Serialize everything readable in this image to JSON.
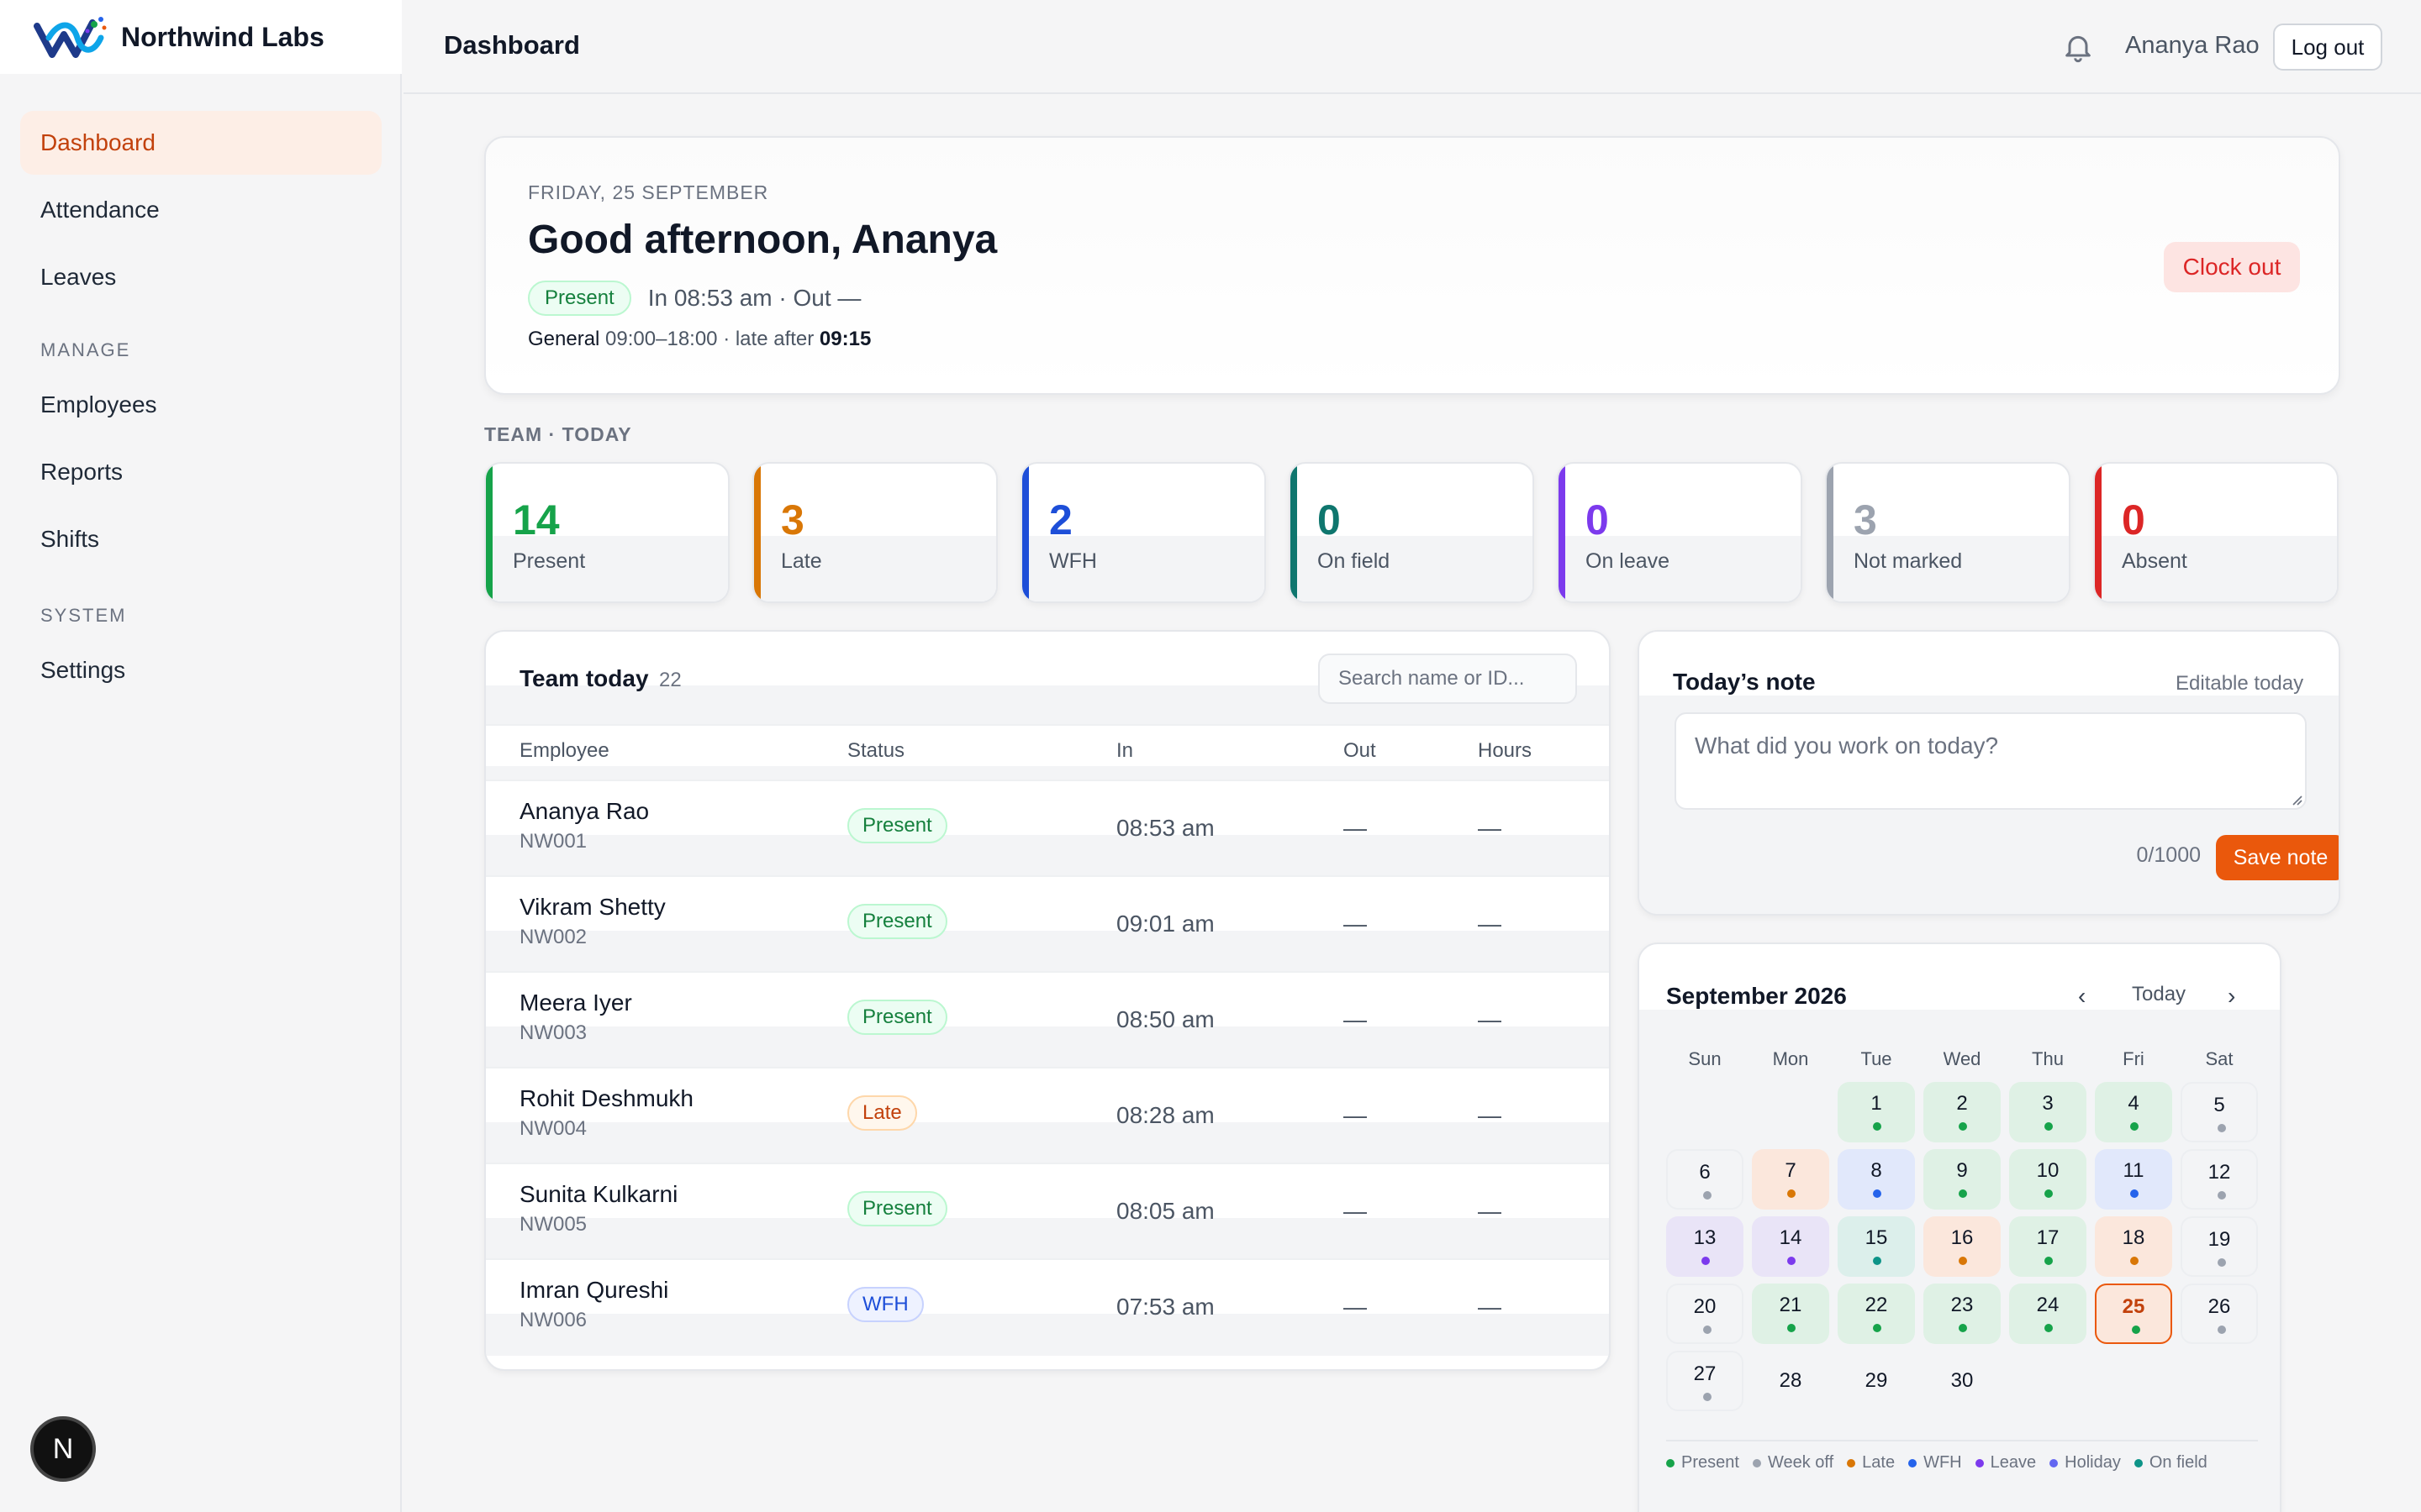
{
  "app": {
    "name": "Northwind Labs"
  },
  "sidebar": {
    "items": [
      {
        "label": "Dashboard",
        "active": true
      },
      {
        "label": "Attendance"
      },
      {
        "label": "Leaves"
      }
    ],
    "manage_label": "MANAGE",
    "manage_items": [
      {
        "label": "Employees"
      },
      {
        "label": "Reports"
      },
      {
        "label": "Shifts"
      }
    ],
    "system_label": "SYSTEM",
    "system_items": [
      {
        "label": "Settings"
      }
    ],
    "badge": "N"
  },
  "topbar": {
    "title": "Dashboard",
    "user": "Ananya Rao",
    "logout_label": "Log out",
    "icon": "bell-icon"
  },
  "greeting": {
    "date": "FRIDAY, 25 SEPTEMBER",
    "title": "Good afternoon, Ananya",
    "status": "Present",
    "in_out": "In 08:53 am · Out —",
    "shift_name": "General",
    "shift_hours": " 09:00–18:00 · late after ",
    "late_after": "09:15",
    "clock_out_label": "Clock out"
  },
  "team_today_label": "TEAM · TODAY",
  "stats": [
    {
      "value": "14",
      "label": "Present",
      "color": "#16a34a"
    },
    {
      "value": "3",
      "label": "Late",
      "color": "#d97706"
    },
    {
      "value": "2",
      "label": "WFH",
      "color": "#1d4ed8"
    },
    {
      "value": "0",
      "label": "On field",
      "color": "#0f766e"
    },
    {
      "value": "0",
      "label": "On leave",
      "color": "#7c3aed"
    },
    {
      "value": "3",
      "label": "Not marked",
      "color": "#9ca3af"
    },
    {
      "value": "0",
      "label": "Absent",
      "color": "#dc2626"
    }
  ],
  "team": {
    "title": "Team today",
    "count": "22",
    "search_placeholder": "Search name or ID...",
    "columns": [
      "Employee",
      "Status",
      "In",
      "Out",
      "Hours"
    ],
    "rows": [
      {
        "name": "Ananya Rao",
        "id": "NW001",
        "status": "Present",
        "in": "08:53 am",
        "out": "—",
        "hours": "—"
      },
      {
        "name": "Vikram Shetty",
        "id": "NW002",
        "status": "Present",
        "in": "09:01 am",
        "out": "—",
        "hours": "—"
      },
      {
        "name": "Meera Iyer",
        "id": "NW003",
        "status": "Present",
        "in": "08:50 am",
        "out": "—",
        "hours": "—"
      },
      {
        "name": "Rohit Deshmukh",
        "id": "NW004",
        "status": "Late",
        "in": "08:28 am",
        "out": "—",
        "hours": "—"
      },
      {
        "name": "Sunita Kulkarni",
        "id": "NW005",
        "status": "Present",
        "in": "08:05 am",
        "out": "—",
        "hours": "—"
      },
      {
        "name": "Imran Qureshi",
        "id": "NW006",
        "status": "WFH",
        "in": "07:53 am",
        "out": "—",
        "hours": "—"
      }
    ]
  },
  "note": {
    "title": "Today’s note",
    "hint": "Editable today",
    "placeholder": "What did you work on today?",
    "count": "0/1000",
    "save_label": "Save note"
  },
  "calendar": {
    "title": "September 2026",
    "prev": "‹",
    "today_label": "Today",
    "next": "›",
    "weekdays": [
      "Sun",
      "Mon",
      "Tue",
      "Wed",
      "Thu",
      "Fri",
      "Sat"
    ],
    "first_weekday_index": 2,
    "today": 25,
    "days": [
      {
        "d": "1",
        "s": "present"
      },
      {
        "d": "2",
        "s": "present"
      },
      {
        "d": "3",
        "s": "present"
      },
      {
        "d": "4",
        "s": "present"
      },
      {
        "d": "5",
        "s": "weekoff"
      },
      {
        "d": "6",
        "s": "weekoff"
      },
      {
        "d": "7",
        "s": "late"
      },
      {
        "d": "8",
        "s": "wfh"
      },
      {
        "d": "9",
        "s": "present"
      },
      {
        "d": "10",
        "s": "present"
      },
      {
        "d": "11",
        "s": "wfh"
      },
      {
        "d": "12",
        "s": "weekoff"
      },
      {
        "d": "13",
        "s": "leave"
      },
      {
        "d": "14",
        "s": "leave"
      },
      {
        "d": "15",
        "s": "field"
      },
      {
        "d": "16",
        "s": "late"
      },
      {
        "d": "17",
        "s": "present"
      },
      {
        "d": "18",
        "s": "late"
      },
      {
        "d": "19",
        "s": "weekoff"
      },
      {
        "d": "20",
        "s": "weekoff"
      },
      {
        "d": "21",
        "s": "present"
      },
      {
        "d": "22",
        "s": "present"
      },
      {
        "d": "23",
        "s": "present"
      },
      {
        "d": "24",
        "s": "present"
      },
      {
        "d": "25",
        "s": "present"
      },
      {
        "d": "26",
        "s": "weekoff"
      },
      {
        "d": "27",
        "s": "weekoff"
      },
      {
        "d": "28",
        "s": "none"
      },
      {
        "d": "29",
        "s": "none"
      },
      {
        "d": "30",
        "s": "none"
      }
    ],
    "legend": [
      {
        "label": "Present",
        "color": "#16a34a"
      },
      {
        "label": "Week off",
        "color": "#9ca3af"
      },
      {
        "label": "Late",
        "color": "#d97706"
      },
      {
        "label": "WFH",
        "color": "#2563eb"
      },
      {
        "label": "Leave",
        "color": "#7c3aed"
      },
      {
        "label": "Holiday",
        "color": "#6366f1"
      },
      {
        "label": "On field",
        "color": "#0d9488"
      }
    ],
    "dot_colors": {
      "present": "#16a34a",
      "weekoff": "#9ca3af",
      "late": "#d97706",
      "wfh": "#2563eb",
      "leave": "#7c3aed",
      "field": "#0d9488"
    }
  }
}
